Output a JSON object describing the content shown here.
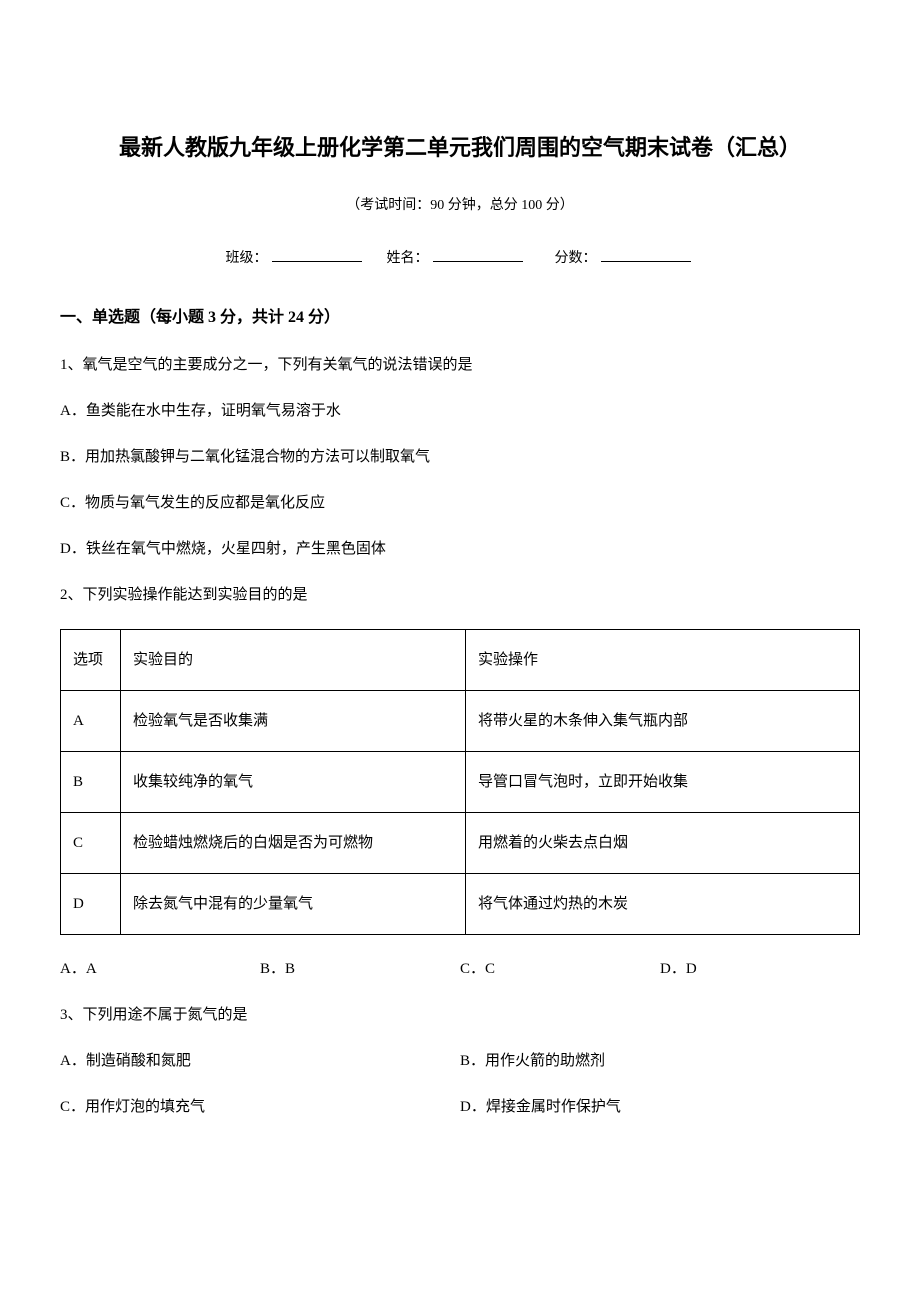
{
  "title": "最新人教版九年级上册化学第二单元我们周围的空气期末试卷（汇总）",
  "examInfo": "（考试时间：90 分钟，总分 100 分）",
  "meta": {
    "classLabel": "班级：",
    "nameLabel": "姓名：",
    "scoreLabel": "分数："
  },
  "section1": {
    "header": "一、单选题（每小题 3 分，共计 24 分）"
  },
  "q1": {
    "stem": "1、氧气是空气的主要成分之一，下列有关氧气的说法错误的是",
    "optA": "A．鱼类能在水中生存，证明氧气易溶于水",
    "optB": "B．用加热氯酸钾与二氧化锰混合物的方法可以制取氧气",
    "optC": "C．物质与氧气发生的反应都是氧化反应",
    "optD": "D．铁丝在氧气中燃烧，火星四射，产生黑色固体"
  },
  "q2": {
    "stem": "2、下列实验操作能达到实验目的的是",
    "table": {
      "header": [
        "选项",
        "实验目的",
        "实验操作"
      ],
      "rows": [
        [
          "A",
          "检验氧气是否收集满",
          "将带火星的木条伸入集气瓶内部"
        ],
        [
          "B",
          "收集较纯净的氧气",
          "导管口冒气泡时，立即开始收集"
        ],
        [
          "C",
          "检验蜡烛燃烧后的白烟是否为可燃物",
          "用燃着的火柴去点白烟"
        ],
        [
          "D",
          "除去氮气中混有的少量氧气",
          "将气体通过灼热的木炭"
        ]
      ]
    },
    "optA": "A．A",
    "optB": "B．B",
    "optC": "C．C",
    "optD": "D．D"
  },
  "q3": {
    "stem": "3、下列用途不属于氮气的是",
    "optA": "A．制造硝酸和氮肥",
    "optB": "B．用作火箭的助燃剂",
    "optC": "C．用作灯泡的填充气",
    "optD": "D．焊接金属时作保护气"
  },
  "style": {
    "bg": "#ffffff",
    "text": "#000000",
    "titleFontSize": 22,
    "bodyFontSize": 15,
    "subtitleFontSize": 14,
    "sectionHeaderFontSize": 16,
    "fontFamily": "SimSun",
    "tableBorderColor": "#000000",
    "tableCol0Width": 60,
    "tableCol1Width": 345,
    "pageWidth": 920,
    "pageHeight": 1302
  }
}
